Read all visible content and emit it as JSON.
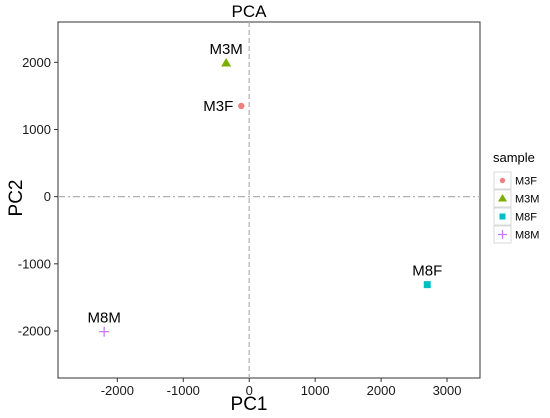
{
  "chart_data": {
    "type": "scatter",
    "title": "PCA",
    "xlabel": "PC1",
    "ylabel": "PC2",
    "xlim": [
      -2900,
      3500
    ],
    "ylim": [
      -2700,
      2600
    ],
    "xticks": [
      -2000,
      -1000,
      0,
      1000,
      2000,
      3000
    ],
    "yticks": [
      -2000,
      -1000,
      0,
      1000,
      2000
    ],
    "grid": false,
    "reference_lines": {
      "x": 0,
      "y": 0,
      "style": "dashed"
    },
    "legend": {
      "title": "sample",
      "position": "right"
    },
    "series": [
      {
        "name": "M3F",
        "marker": "circle",
        "color": "#F08080",
        "x": -120,
        "y": 1350
      },
      {
        "name": "M3M",
        "marker": "triangle",
        "color": "#7CAE00",
        "x": -350,
        "y": 1990
      },
      {
        "name": "M8F",
        "marker": "square",
        "color": "#00BFC4",
        "x": 2700,
        "y": -1310
      },
      {
        "name": "M8M",
        "marker": "plus",
        "color": "#C77CFF",
        "x": -2200,
        "y": -2010
      }
    ]
  }
}
